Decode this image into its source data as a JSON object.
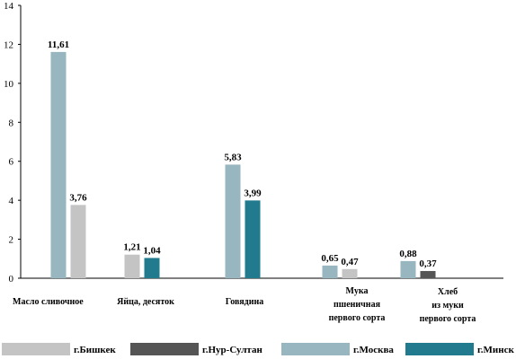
{
  "chart_data": {
    "type": "bar",
    "categories": [
      {
        "lines": [
          "Масло сливочное"
        ],
        "align": "left"
      },
      {
        "lines": [
          "Яйца,  десяток"
        ],
        "align": "center"
      },
      {
        "lines": [
          "Говядина"
        ],
        "align": "center"
      },
      {
        "lines": [
          "Мука",
          "пшеничная",
          "первого сорта"
        ],
        "align": "center"
      },
      {
        "lines": [
          "Хлеб",
          "из муки",
          "первого сорта"
        ],
        "align": "center"
      }
    ],
    "series": [
      {
        "name": "г.Бишкек",
        "color": "#c4c4c4",
        "values": [
          3.76,
          1.21,
          null,
          0.47,
          null
        ]
      },
      {
        "name": "г.Нур-Султан",
        "color": "#555555",
        "values": [
          null,
          null,
          null,
          null,
          0.37
        ]
      },
      {
        "name": "г.Москва",
        "color": "#98b6c0",
        "values": [
          11.61,
          null,
          5.83,
          0.65,
          0.88
        ]
      },
      {
        "name": "г.Минск",
        "color": "#227a8e",
        "values": [
          null,
          1.04,
          3.99,
          null,
          null
        ]
      }
    ],
    "bar_order": [
      [
        "г.Москва",
        "г.Бишкек"
      ],
      [
        "г.Бишкек",
        "г.Минск"
      ],
      [
        "г.Москва",
        "г.Минск"
      ],
      [
        "г.Москва",
        "г.Бишкек"
      ],
      [
        "г.Москва",
        "г.Нур-Султан"
      ]
    ],
    "data_labels": [
      [
        "11,61",
        "3,76"
      ],
      [
        "1,21",
        "1,04"
      ],
      [
        "5,83",
        "3,99"
      ],
      [
        "0,65",
        "0,47"
      ],
      [
        "0,88",
        "0,37"
      ]
    ],
    "y_ticks": [
      0,
      2,
      4,
      6,
      8,
      10,
      12,
      14
    ],
    "ylim": [
      0,
      14
    ],
    "grid": false,
    "legend_position": "bottom",
    "xlabel": "",
    "ylabel": "",
    "title": ""
  }
}
